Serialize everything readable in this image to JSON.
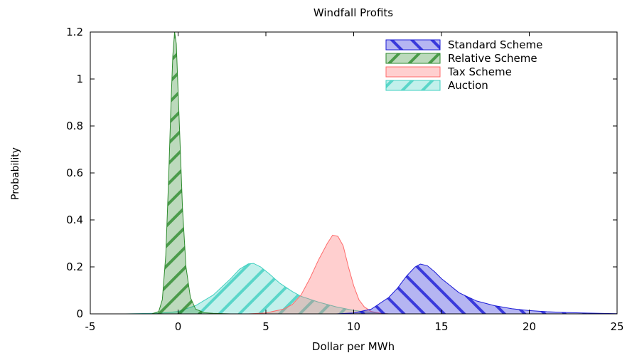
{
  "chart_data": {
    "type": "area",
    "title": "Windfall Profits",
    "xlabel": "Dollar per MWh",
    "ylabel": "Probability",
    "xlim": [
      -5,
      25
    ],
    "ylim": [
      0,
      1.2
    ],
    "xticks": [
      -5,
      0,
      5,
      10,
      15,
      20,
      25
    ],
    "yticks": [
      0,
      0.2,
      0.4,
      0.6,
      0.8,
      1,
      1.2
    ],
    "xtick_labels": [
      "-5",
      "0",
      "5",
      "10",
      "15",
      "20",
      "25"
    ],
    "ytick_labels": [
      "0",
      "0.2",
      "0.4",
      "0.6",
      "0.8",
      "1",
      "1.2"
    ],
    "grid": false,
    "legend_position": "top-right",
    "series": [
      {
        "name": "Standard Scheme",
        "color": "#1a1ad6",
        "pattern": "hatch-backslash",
        "x": [
          9,
          10,
          11,
          12,
          12.5,
          13,
          13.5,
          13.8,
          14.2,
          14.6,
          15,
          15.5,
          16,
          17,
          18,
          19,
          20,
          21,
          22,
          23,
          24,
          25
        ],
        "y": [
          0,
          0.004,
          0.02,
          0.07,
          0.11,
          0.16,
          0.2,
          0.212,
          0.205,
          0.18,
          0.15,
          0.12,
          0.09,
          0.055,
          0.035,
          0.022,
          0.014,
          0.009,
          0.006,
          0.004,
          0.002,
          0.001
        ]
      },
      {
        "name": "Relative Scheme",
        "color": "#2e8b2e",
        "pattern": "hatch-slash",
        "x": [
          -1.5,
          -1.1,
          -0.9,
          -0.7,
          -0.55,
          -0.4,
          -0.3,
          -0.2,
          -0.1,
          0,
          0.1,
          0.25,
          0.45,
          0.7,
          1,
          1.5,
          2,
          3
        ],
        "y": [
          0,
          0.01,
          0.06,
          0.25,
          0.55,
          0.9,
          1.1,
          1.2,
          1.15,
          0.95,
          0.75,
          0.45,
          0.2,
          0.07,
          0.02,
          0.005,
          0.002,
          0
        ]
      },
      {
        "name": "Tax Scheme",
        "color": "#ff6b6b",
        "pattern": "solid",
        "x": [
          4,
          5,
          6,
          6.5,
          7,
          7.5,
          8,
          8.5,
          8.8,
          9.1,
          9.4,
          9.7,
          10,
          10.3,
          10.6,
          11,
          11.5,
          12
        ],
        "y": [
          0,
          0.004,
          0.02,
          0.04,
          0.08,
          0.15,
          0.23,
          0.3,
          0.335,
          0.33,
          0.29,
          0.2,
          0.12,
          0.06,
          0.03,
          0.01,
          0.003,
          0
        ]
      },
      {
        "name": "Auction",
        "color": "#40d0c0",
        "pattern": "hatch-slash",
        "x": [
          -3,
          -1,
          0,
          1,
          2,
          3,
          3.5,
          4,
          4.3,
          4.7,
          5.2,
          5.8,
          6.5,
          7,
          8,
          9,
          10,
          11,
          12
        ],
        "y": [
          0,
          0.003,
          0.01,
          0.035,
          0.08,
          0.15,
          0.19,
          0.213,
          0.215,
          0.2,
          0.17,
          0.13,
          0.095,
          0.075,
          0.05,
          0.03,
          0.015,
          0.006,
          0
        ]
      }
    ]
  }
}
